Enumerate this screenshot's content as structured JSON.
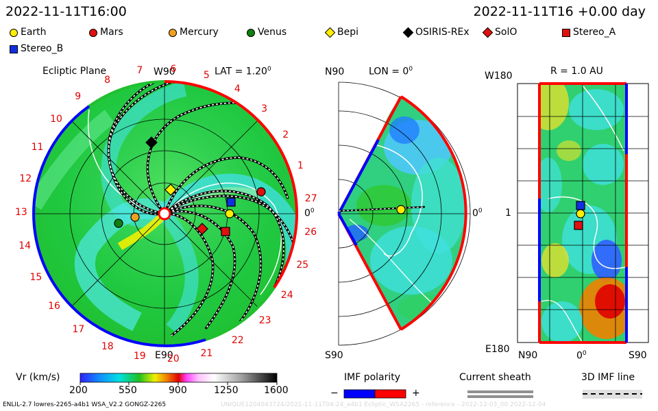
{
  "header": {
    "time_left": "2022-11-11T16:00",
    "time_right": "2022-11-11T16 +0.00 day"
  },
  "legend": [
    {
      "label": "Earth",
      "shape": "circle",
      "color": "#ffee00"
    },
    {
      "label": "Mars",
      "shape": "circle",
      "color": "#e01010"
    },
    {
      "label": "Mercury",
      "shape": "circle",
      "color": "#f0a020"
    },
    {
      "label": "Venus",
      "shape": "circle",
      "color": "#108010"
    },
    {
      "label": "Bepi",
      "shape": "diamond",
      "color": "#ffee00"
    },
    {
      "label": "OSIRIS-REx",
      "shape": "diamond",
      "color": "#000000"
    },
    {
      "label": "SolO",
      "shape": "diamond",
      "color": "#e01010"
    },
    {
      "label": "Stereo_A",
      "shape": "square",
      "color": "#e01010"
    },
    {
      "label": "Stereo_B",
      "shape": "square",
      "color": "#1030e0"
    }
  ],
  "ecliptic": {
    "title": "Ecliptic Plane",
    "lat_label": "LAT = 1.20",
    "lat_sup": "0",
    "top_label": "W90",
    "bottom_label": "E90",
    "right_label": "0",
    "right_sup": "0",
    "carrington": [
      "1",
      "2",
      "3",
      "4",
      "5",
      "6",
      "7",
      "8",
      "9",
      "10",
      "11",
      "12",
      "13",
      "14",
      "15",
      "16",
      "17",
      "18",
      "19",
      "20",
      "21",
      "22",
      "23",
      "24",
      "25",
      "26",
      "27"
    ]
  },
  "meridional": {
    "top_left": "N90",
    "lon_label": "LON = 0",
    "lon_sup": "0",
    "right_label": "0",
    "right_sup": "0",
    "bottom_left": "S90"
  },
  "sphere": {
    "r_label": "R = 1.0 AU",
    "top_left": "W180",
    "left_mid": "1",
    "bottom_left": "E180",
    "x_labels": [
      "N90",
      "0",
      "S90"
    ],
    "x_mid_sup": "0"
  },
  "colorbar": {
    "label": "Vr (km/s)",
    "ticks": [
      "200",
      "550",
      "900",
      "1250",
      "1600"
    ],
    "colors": {
      "blue": "#2040ff",
      "cyan": "#00e0e0",
      "green": "#20c020",
      "yellow": "#f0f000",
      "orange": "#f08000",
      "red": "#e00000",
      "magenta": "#ff40ff",
      "white": "#ffffff",
      "black": "#000000"
    }
  },
  "imf": {
    "title": "IMF polarity",
    "minus": "−",
    "plus": "+",
    "neg_color": "#0000ff",
    "pos_color": "#ff0000"
  },
  "sheath": {
    "title": "Current sheath"
  },
  "imfline": {
    "title": "3D IMF line"
  },
  "footer": {
    "text": "ENLIL-2.7 lowres-2265-a4b1 WSA_V2.2 GONGZ-2265",
    "watermark": "UNIQUE1204043724/2021-11-11T04:24_a4b1 Ecliptic_WSA2265 - reference - 2022-12-03_00   2022-12-04"
  }
}
